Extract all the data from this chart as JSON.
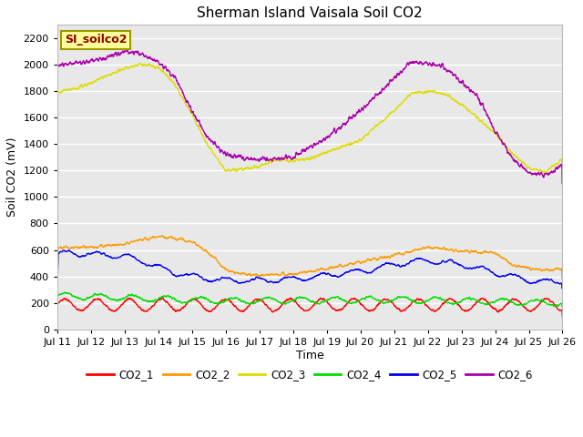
{
  "title": "Sherman Island Vaisala Soil CO2",
  "ylabel": "Soil CO2 (mV)",
  "xlabel": "Time",
  "legend_label": "SI_soilco2",
  "ylim": [
    0,
    2300
  ],
  "yticks": [
    0,
    200,
    400,
    600,
    800,
    1000,
    1200,
    1400,
    1600,
    1800,
    2000,
    2200
  ],
  "xtick_labels": [
    "Jul 11",
    "Jul 12",
    "Jul 13",
    "Jul 14",
    "Jul 15",
    "Jul 16",
    "Jul 17",
    "Jul 18",
    "Jul 19",
    "Jul 20",
    "Jul 21",
    "Jul 22",
    "Jul 23",
    "Jul 24",
    "Jul 25",
    "Jul 26"
  ],
  "line_colors": {
    "CO2_1": "#ff0000",
    "CO2_2": "#ff9900",
    "CO2_3": "#dddd00",
    "CO2_4": "#00dd00",
    "CO2_5": "#0000ee",
    "CO2_6": "#aa00aa"
  },
  "plot_bg": "#e8e8e8",
  "fig_bg": "#ffffff",
  "title_fontsize": 11,
  "axis_label_fontsize": 9,
  "tick_fontsize": 8
}
